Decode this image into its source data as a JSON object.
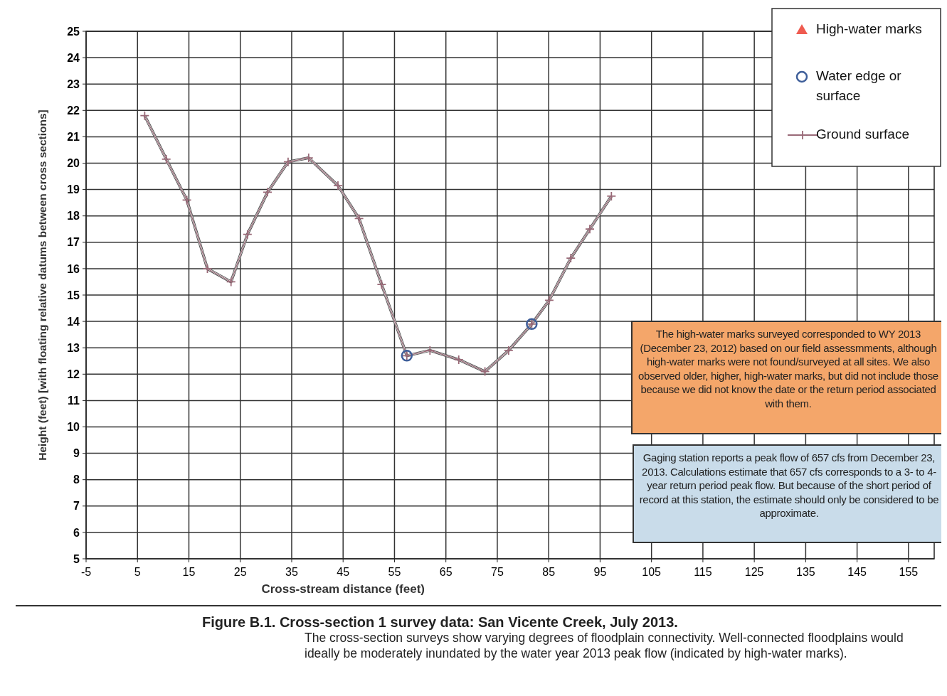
{
  "chart_data": {
    "type": "line",
    "title": "Figure B.1.  Cross-section 1 survey data: San Vicente Creek, July 2013.",
    "subtitle": "The cross-section surveys show varying degrees of floodplain connectivity. Well-connected floodplains would ideally be moderately inundated by the water year 2013 peak flow (indicated by high-water marks).",
    "xlabel": "Cross-stream distance (feet)",
    "ylabel": "Height (feet) [with floating relative datums between cross sections]",
    "xlim": [
      -5,
      160
    ],
    "xticks": [
      -5,
      5,
      15,
      25,
      35,
      45,
      55,
      65,
      75,
      85,
      95,
      105,
      115,
      125,
      135,
      145,
      155
    ],
    "ylim": [
      5,
      25
    ],
    "yticks": [
      5,
      6,
      7,
      8,
      9,
      10,
      11,
      12,
      13,
      14,
      15,
      16,
      17,
      18,
      19,
      20,
      21,
      22,
      23,
      24,
      25
    ],
    "grid": true,
    "legend": "top right",
    "series": [
      {
        "name": "High-water marks",
        "type": "scatter",
        "marker": "triangle",
        "color": "#ef5b50"
      },
      {
        "name": "Water edge or surface",
        "type": "scatter",
        "marker": "circle",
        "color": "#3f5f9a",
        "x": [
          57.4,
          81.7
        ],
        "values": [
          12.7,
          13.9
        ]
      },
      {
        "name": "Ground surface",
        "marker": "cross",
        "color": "#9a6a78",
        "x": [
          6.4,
          10.6,
          14.6,
          18.6,
          23.2,
          26.4,
          30.3,
          34.3,
          38.3,
          44.0,
          48.1,
          52.5,
          57.4,
          61.9,
          67.5,
          72.6,
          77.2,
          81.7,
          85.1,
          89.3,
          93.0,
          97.2
        ],
        "values": [
          21.8,
          20.15,
          18.6,
          16.0,
          15.5,
          17.3,
          18.9,
          20.05,
          20.2,
          19.15,
          17.9,
          15.4,
          12.7,
          12.9,
          12.55,
          12.1,
          12.9,
          13.9,
          14.8,
          16.4,
          17.5,
          18.75
        ]
      }
    ],
    "annotations": [
      "The high-water marks surveyed corresponded to WY 2013 (December 23, 2012) based on our field assessmments, although high-water marks were not found/surveyed at all sites. We also observed older, higher, high-water marks, but did not include those because we did not know the date or the return period associated with them.",
      "Gaging station reports a peak flow of 657 cfs from December 23, 2013. Calculations estimate that 657 cfs corresponds to a 3- to 4-year return period peak flow. But because of the short period of record at this station, the estimate should only be considered to be approximate."
    ]
  }
}
